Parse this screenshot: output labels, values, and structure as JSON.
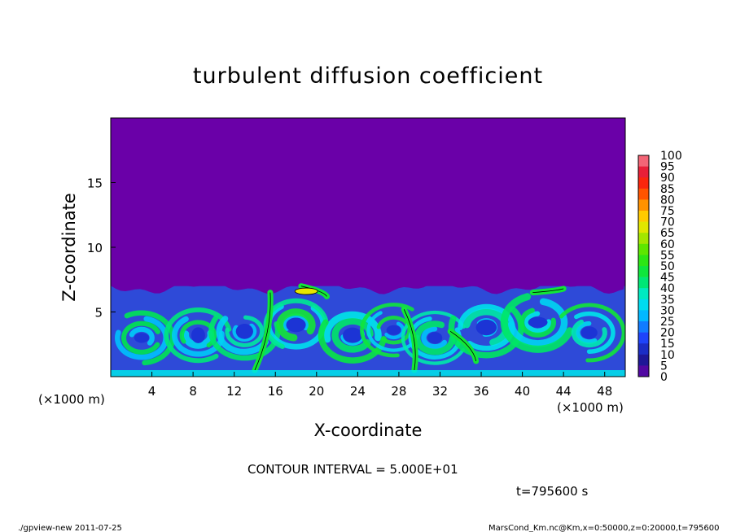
{
  "chart_data": {
    "type": "heatmap",
    "title": "turbulent diffusion coefficient",
    "xlabel": "X-coordinate",
    "ylabel": "Z-coordinate",
    "x_unit": "(×1000 m)",
    "y_unit": "(×1000 m)",
    "xlim": [
      0,
      50
    ],
    "ylim": [
      0,
      20
    ],
    "x_ticks": [
      "4",
      "8",
      "12",
      "16",
      "20",
      "24",
      "28",
      "32",
      "36",
      "40",
      "44",
      "48"
    ],
    "y_ticks": [
      "5",
      "10",
      "15"
    ],
    "colorbar": {
      "min": 0,
      "max": 100,
      "step": 5,
      "labels": [
        "100",
        "95",
        "90",
        "85",
        "80",
        "75",
        "70",
        "65",
        "60",
        "55",
        "50",
        "45",
        "40",
        "35",
        "30",
        "25",
        "20",
        "15",
        "10",
        "5",
        "0"
      ]
    },
    "contour_interval_text": "CONTOUR INTERVAL = 5.000E+01",
    "contour_level": 50,
    "background_value": 0,
    "turbulent_layer_top_km": 7
  },
  "time_label": "t=795600 s",
  "footer_left": "./gpview-new  2011-07-25",
  "footer_right": "MarsCond_Km.nc@Km,x=0:50000,z=0:20000,t=795600",
  "colors": {
    "background_purple": "#6a00a8",
    "low": "#1e3cff",
    "mid": "#00e5ff",
    "high": "#00dd33"
  }
}
